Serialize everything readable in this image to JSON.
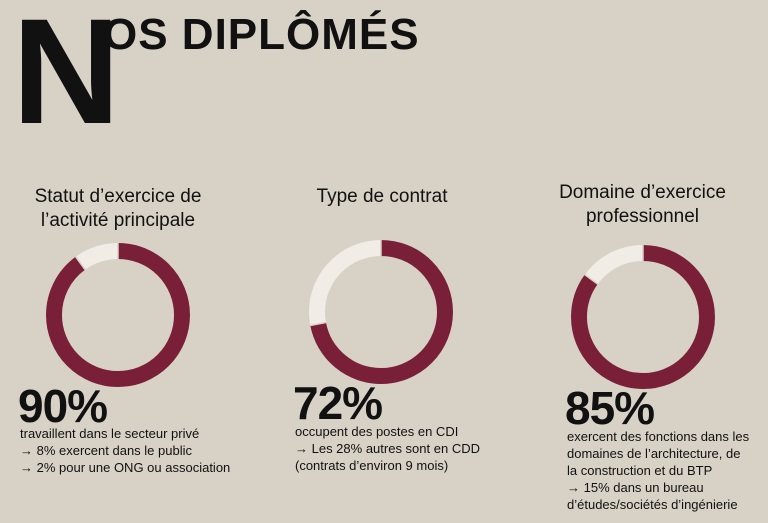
{
  "header": {
    "title_initial": "N",
    "title_rest": "OS DIPLÔMÉS"
  },
  "colors": {
    "accent": "#7a1f38",
    "remainder": "#f1ede6",
    "background": "#d8d2c6"
  },
  "chart_data": [
    {
      "type": "pie",
      "title": "Statut d’exercice de l’activité principale",
      "title_lines": [
        "Statut d’exercice de",
        "l’activité principale"
      ],
      "values": [
        90,
        10
      ],
      "value_label": "90%",
      "description": [
        "travaillent dans le secteur privé",
        "→ 8% exercent dans le public",
        "→ 2% pour une ONG ou association"
      ]
    },
    {
      "type": "pie",
      "title": "Type de contrat",
      "title_lines": [
        "Type de contrat"
      ],
      "values": [
        72,
        28
      ],
      "value_label": "72%",
      "description": [
        "occupent des postes en CDI",
        "→ Les 28% autres sont en CDD",
        "(contrats d’environ 9 mois)"
      ]
    },
    {
      "type": "pie",
      "title": "Domaine d’exercice professionnel",
      "title_lines": [
        "Domaine d’exercice",
        "professionnel"
      ],
      "values": [
        85,
        15
      ],
      "value_label": "85%",
      "description": [
        "exercent des fonctions dans les",
        "domaines de l’architecture, de",
        "la construction et du BTP",
        "→ 15% dans un bureau",
        "d’études/sociétés d’ingénierie"
      ]
    }
  ]
}
